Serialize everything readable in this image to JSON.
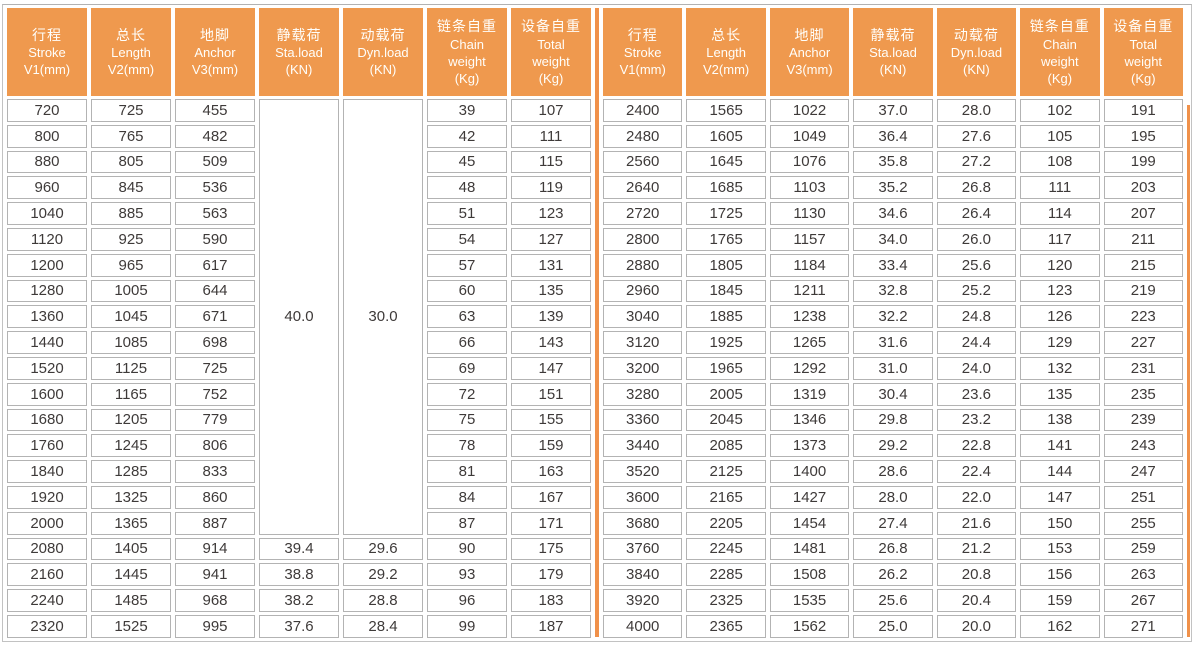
{
  "colors": {
    "header_bg": "#EF994E",
    "divider_orange": "#F0914A",
    "cell_border": "#B3B3B3",
    "cell_text": "#3E3A39",
    "header_text": "#FFFFFF",
    "outer_border": "#C2C2C2"
  },
  "chart_data": {
    "type": "table",
    "title": "",
    "layout": "two side-by-side halves of 21 rows each; same 7 columns repeated; gridlines on; merged Sta.load/Dyn.load cell in left half",
    "columns": [
      {
        "label": "行程 Stroke V1(mm)",
        "lines": [
          "行程",
          "Stroke",
          "V1(mm)"
        ]
      },
      {
        "label": "总长 Length V2(mm)",
        "lines": [
          "总长",
          "Length",
          "V2(mm)"
        ]
      },
      {
        "label": "地脚 Anchor V3(mm)",
        "lines": [
          "地脚",
          "Anchor",
          "V3(mm)"
        ]
      },
      {
        "label": "静载荷 Sta.load (KN)",
        "lines": [
          "静载荷",
          "Sta.load",
          "(KN)"
        ]
      },
      {
        "label": "动载荷 Dyn.load (KN)",
        "lines": [
          "动载荷",
          "Dyn.load",
          "(KN)"
        ]
      },
      {
        "label": "链条自重 Chain weight (Kg)",
        "lines": [
          "链条自重",
          "Chain",
          "weight",
          "(Kg)"
        ]
      },
      {
        "label": "设备自重 Total weight (Kg)",
        "lines": [
          "设备自重",
          "Total",
          "weight",
          "(Kg)"
        ]
      }
    ],
    "left_merged": {
      "row_start": 0,
      "row_count": 17,
      "sta_load": "40.0",
      "dyn_load": "30.0",
      "note": "Sta.load 40.0 and Dyn.load 30.0 are shown once in a merged cell spanning strokes 720-2000; rows 1-16 repeat the effective value in data only"
    },
    "rows": [
      [
        "720",
        "725",
        "455",
        "40.0",
        "30.0",
        "39",
        "107"
      ],
      [
        "800",
        "765",
        "482",
        "40.0",
        "30.0",
        "42",
        "111"
      ],
      [
        "880",
        "805",
        "509",
        "40.0",
        "30.0",
        "45",
        "115"
      ],
      [
        "960",
        "845",
        "536",
        "40.0",
        "30.0",
        "48",
        "119"
      ],
      [
        "1040",
        "885",
        "563",
        "40.0",
        "30.0",
        "51",
        "123"
      ],
      [
        "1120",
        "925",
        "590",
        "40.0",
        "30.0",
        "54",
        "127"
      ],
      [
        "1200",
        "965",
        "617",
        "40.0",
        "30.0",
        "57",
        "131"
      ],
      [
        "1280",
        "1005",
        "644",
        "40.0",
        "30.0",
        "60",
        "135"
      ],
      [
        "1360",
        "1045",
        "671",
        "40.0",
        "30.0",
        "63",
        "139"
      ],
      [
        "1440",
        "1085",
        "698",
        "40.0",
        "30.0",
        "66",
        "143"
      ],
      [
        "1520",
        "1125",
        "725",
        "40.0",
        "30.0",
        "69",
        "147"
      ],
      [
        "1600",
        "1165",
        "752",
        "40.0",
        "30.0",
        "72",
        "151"
      ],
      [
        "1680",
        "1205",
        "779",
        "40.0",
        "30.0",
        "75",
        "155"
      ],
      [
        "1760",
        "1245",
        "806",
        "40.0",
        "30.0",
        "78",
        "159"
      ],
      [
        "1840",
        "1285",
        "833",
        "40.0",
        "30.0",
        "81",
        "163"
      ],
      [
        "1920",
        "1325",
        "860",
        "40.0",
        "30.0",
        "84",
        "167"
      ],
      [
        "2000",
        "1365",
        "887",
        "40.0",
        "30.0",
        "87",
        "171"
      ],
      [
        "2080",
        "1405",
        "914",
        "39.4",
        "29.6",
        "90",
        "175"
      ],
      [
        "2160",
        "1445",
        "941",
        "38.8",
        "29.2",
        "93",
        "179"
      ],
      [
        "2240",
        "1485",
        "968",
        "38.2",
        "28.8",
        "96",
        "183"
      ],
      [
        "2320",
        "1525",
        "995",
        "37.6",
        "28.4",
        "99",
        "187"
      ],
      [
        "2400",
        "1565",
        "1022",
        "37.0",
        "28.0",
        "102",
        "191"
      ],
      [
        "2480",
        "1605",
        "1049",
        "36.4",
        "27.6",
        "105",
        "195"
      ],
      [
        "2560",
        "1645",
        "1076",
        "35.8",
        "27.2",
        "108",
        "199"
      ],
      [
        "2640",
        "1685",
        "1103",
        "35.2",
        "26.8",
        "111",
        "203"
      ],
      [
        "2720",
        "1725",
        "1130",
        "34.6",
        "26.4",
        "114",
        "207"
      ],
      [
        "2800",
        "1765",
        "1157",
        "34.0",
        "26.0",
        "117",
        "211"
      ],
      [
        "2880",
        "1805",
        "1184",
        "33.4",
        "25.6",
        "120",
        "215"
      ],
      [
        "2960",
        "1845",
        "1211",
        "32.8",
        "25.2",
        "123",
        "219"
      ],
      [
        "3040",
        "1885",
        "1238",
        "32.2",
        "24.8",
        "126",
        "223"
      ],
      [
        "3120",
        "1925",
        "1265",
        "31.6",
        "24.4",
        "129",
        "227"
      ],
      [
        "3200",
        "1965",
        "1292",
        "31.0",
        "24.0",
        "132",
        "231"
      ],
      [
        "3280",
        "2005",
        "1319",
        "30.4",
        "23.6",
        "135",
        "235"
      ],
      [
        "3360",
        "2045",
        "1346",
        "29.8",
        "23.2",
        "138",
        "239"
      ],
      [
        "3440",
        "2085",
        "1373",
        "29.2",
        "22.8",
        "141",
        "243"
      ],
      [
        "3520",
        "2125",
        "1400",
        "28.6",
        "22.4",
        "144",
        "247"
      ],
      [
        "3600",
        "2165",
        "1427",
        "28.0",
        "22.0",
        "147",
        "251"
      ],
      [
        "3680",
        "2205",
        "1454",
        "27.4",
        "21.6",
        "150",
        "255"
      ],
      [
        "3760",
        "2245",
        "1481",
        "26.8",
        "21.2",
        "153",
        "259"
      ],
      [
        "3840",
        "2285",
        "1508",
        "26.2",
        "20.8",
        "156",
        "263"
      ],
      [
        "3920",
        "2325",
        "1535",
        "25.6",
        "20.4",
        "159",
        "267"
      ],
      [
        "4000",
        "2365",
        "1562",
        "25.0",
        "20.0",
        "162",
        "271"
      ]
    ]
  }
}
